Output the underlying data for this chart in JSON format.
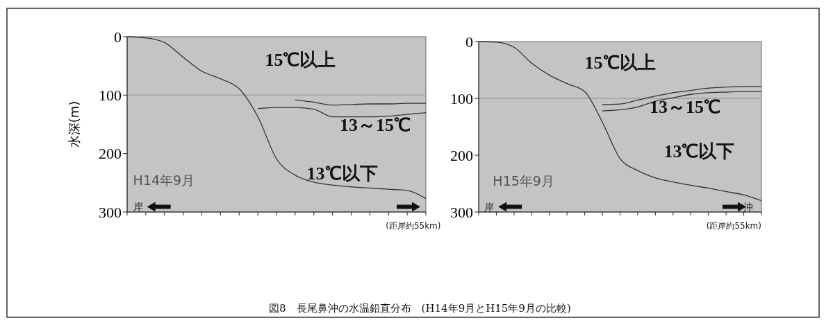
{
  "chart_data": [
    {
      "type": "line",
      "ylabel": "水深(m)",
      "categories": [
        null,
        null,
        null,
        null,
        null,
        null,
        null,
        null,
        null,
        null,
        null,
        null,
        null,
        null,
        null,
        null,
        null
      ],
      "ylim": [
        300,
        0
      ],
      "yticks": [
        0,
        100,
        200,
        300
      ],
      "tick_labels": "y",
      "grid": false,
      "marker": "none",
      "line_style": "solid",
      "ref_lines": [
        {
          "axis": "y",
          "value": 100,
          "color": "#a8a8a8"
        }
      ],
      "series": [
        {
          "color": "#333333",
          "values": [
            0,
            2,
            10,
            35,
            59,
            72,
            89,
            137,
            209,
            237,
            249,
            254,
            257,
            259,
            261,
            263,
            277
          ]
        },
        {
          "color": "#333333",
          "values": [
            null,
            null,
            null,
            null,
            null,
            null,
            null,
            null,
            null,
            108,
            112,
            117,
            116,
            115,
            115,
            114,
            114
          ]
        },
        {
          "color": "#333333",
          "values": [
            null,
            null,
            null,
            null,
            null,
            null,
            null,
            123,
            121,
            121,
            124,
            137,
            137,
            137,
            136,
            133,
            130
          ]
        }
      ],
      "annotations": [
        "15℃以上",
        "13～15℃",
        "13℃以下",
        "H14年9月",
        "岸",
        "(距岸約55km)",
        "図8　長尾鼻沖の水温鉛直分布　(H14年9月とH15年9月の比較)"
      ]
    },
    {
      "type": "line",
      "categories": [
        null,
        null,
        null,
        null,
        null,
        null,
        null,
        null,
        null,
        null,
        null,
        null,
        null,
        null,
        null,
        null,
        null
      ],
      "ylim": [
        300,
        0
      ],
      "yticks": [
        0,
        100,
        200,
        300
      ],
      "tick_labels": "y",
      "grid": false,
      "marker": "none",
      "line_style": "solid",
      "ref_lines": [
        {
          "axis": "y",
          "value": 100,
          "color": "#a8a8a8"
        }
      ],
      "series": [
        {
          "color": "#333333",
          "values": [
            0,
            1,
            10,
            38,
            59,
            74,
            88,
            142,
            206,
            227,
            240,
            247,
            253,
            258,
            264,
            270,
            280
          ]
        },
        {
          "color": "#333333",
          "values": [
            null,
            null,
            null,
            null,
            null,
            null,
            null,
            111,
            110,
            103,
            96,
            90,
            86,
            82,
            80,
            79,
            79
          ]
        },
        {
          "color": "#333333",
          "values": [
            null,
            null,
            null,
            null,
            null,
            null,
            null,
            122,
            120,
            115,
            105,
            99,
            93,
            90,
            89,
            88,
            88
          ]
        }
      ],
      "annotations": [
        "15℃以上",
        "13～15℃",
        "13℃以下",
        "H15年9月",
        "岸",
        "(距岸約55km)",
        "沖"
      ]
    }
  ]
}
